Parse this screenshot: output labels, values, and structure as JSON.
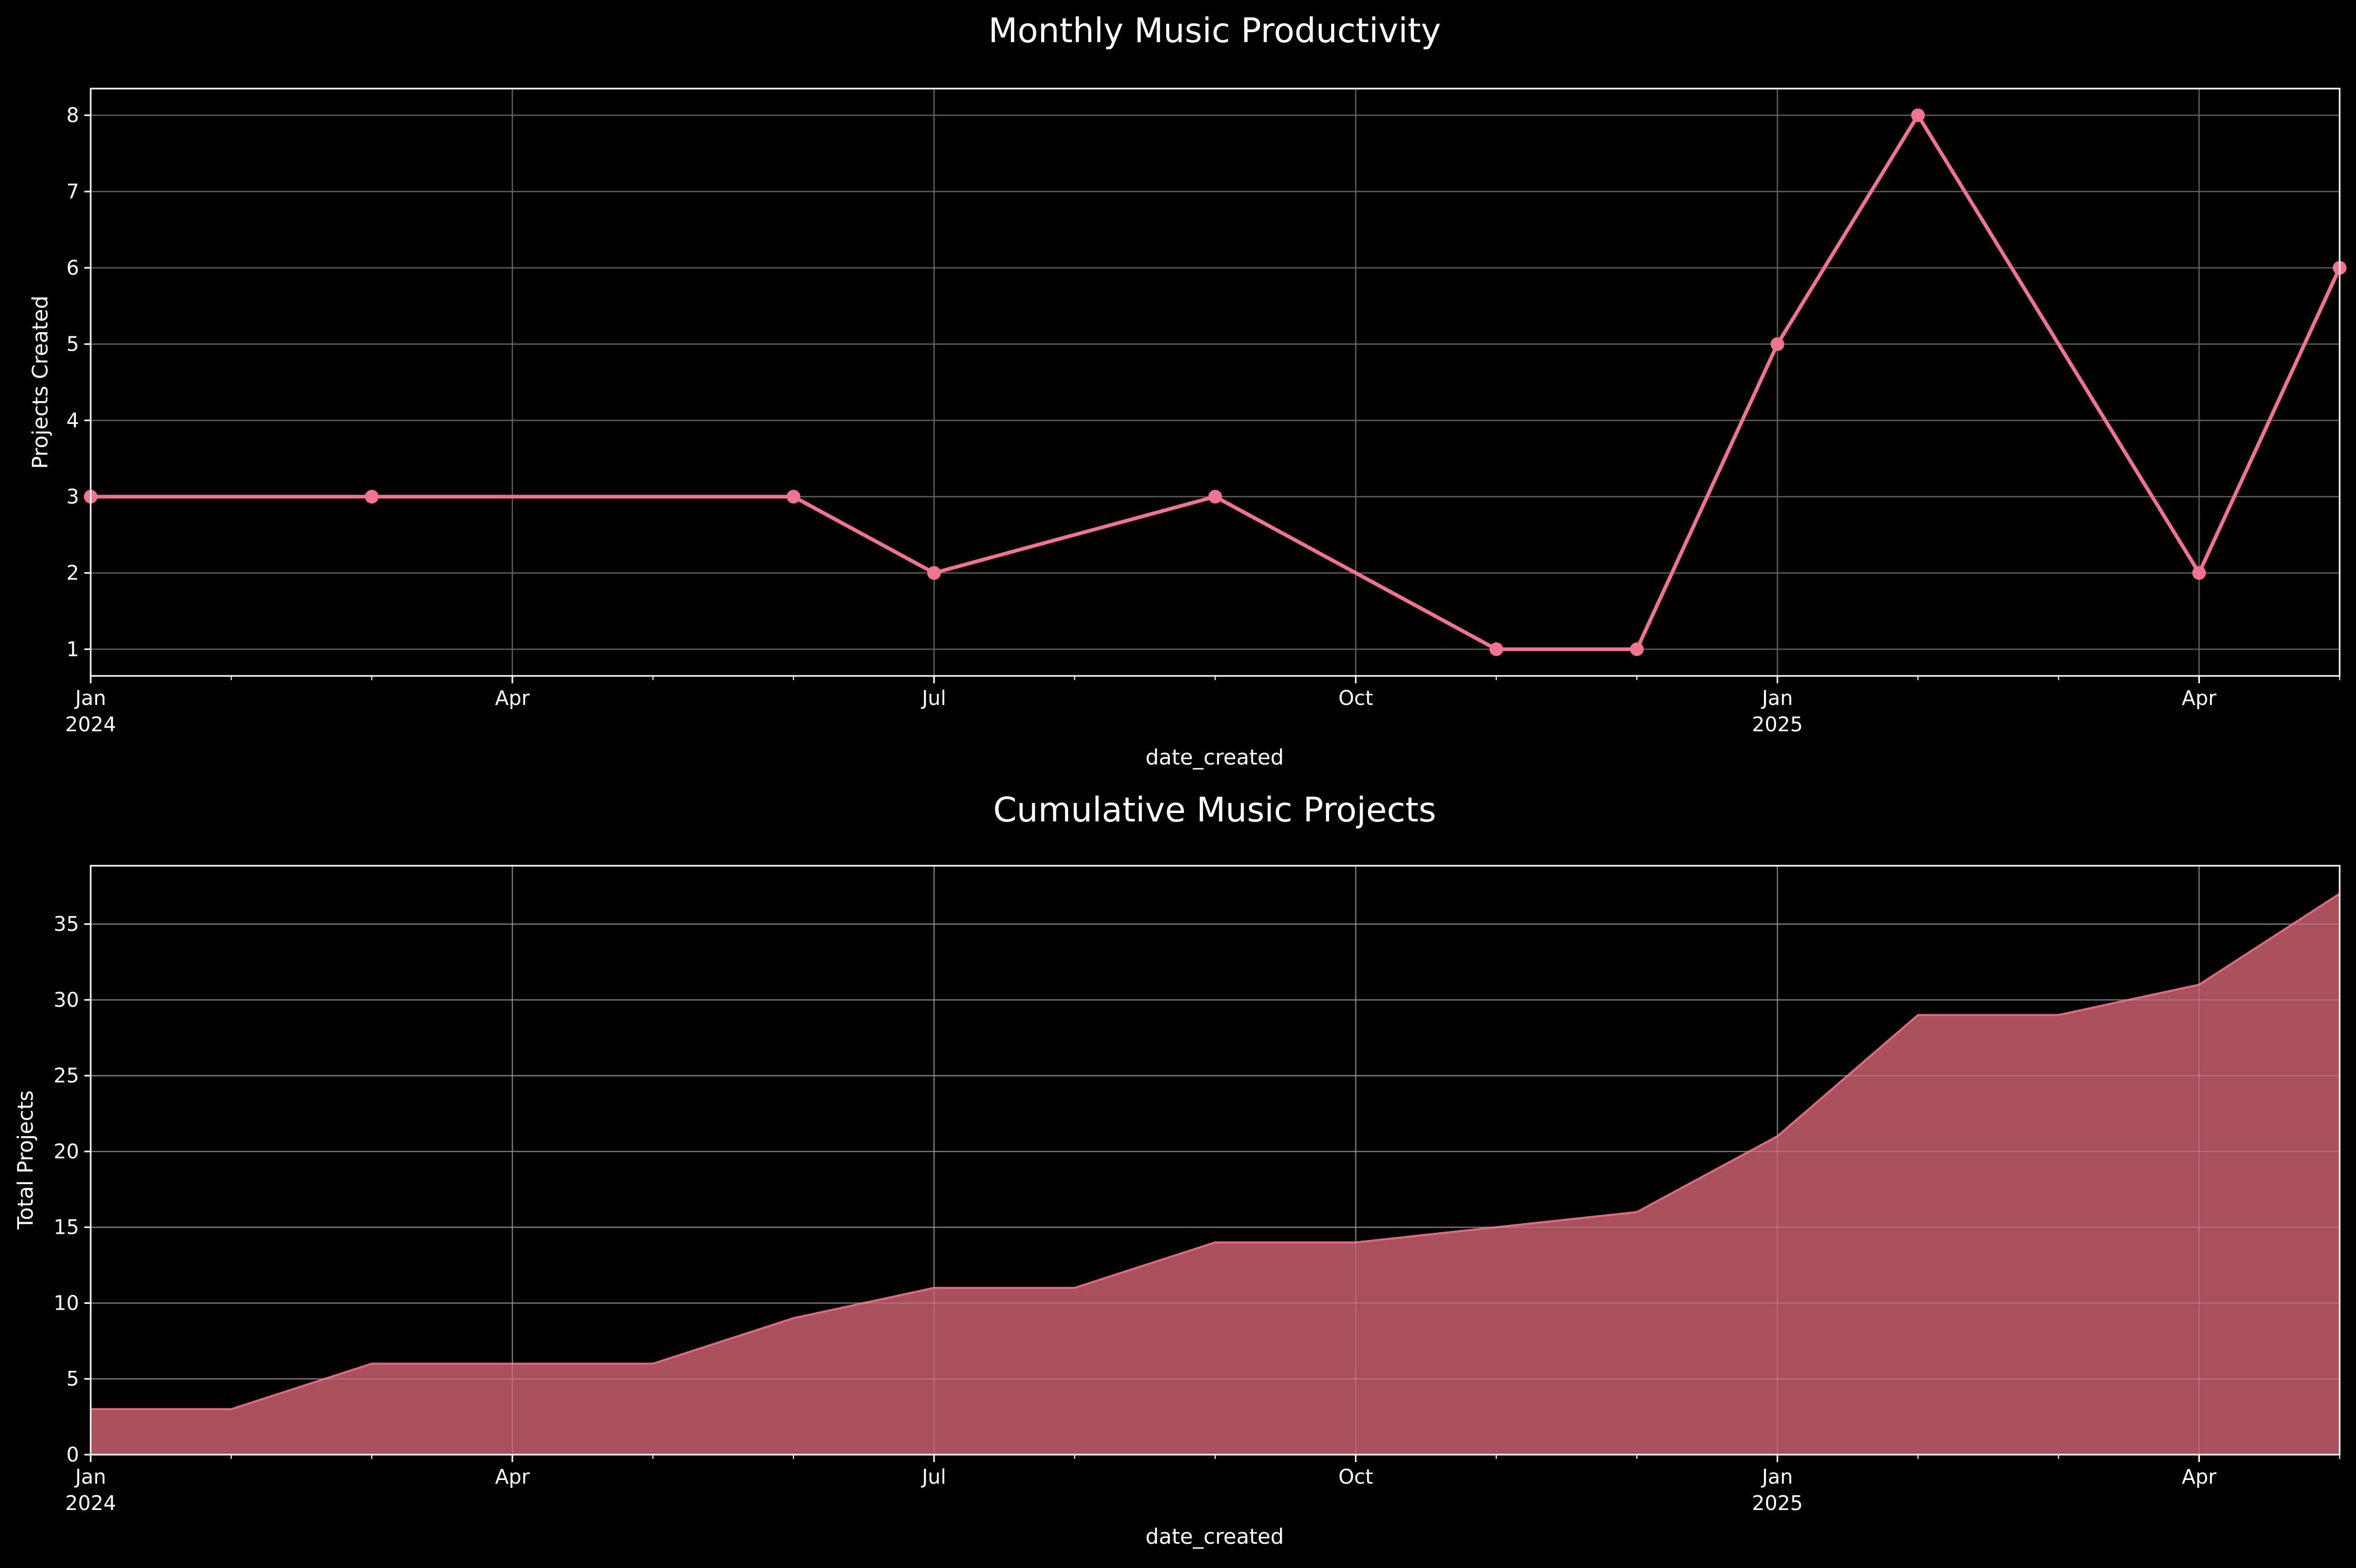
{
  "colors": {
    "background": "#000000",
    "line": "#f07490",
    "area_fill": "#ad5361",
    "area_edge": "#e0687f",
    "axes": "#ffffff",
    "grid": "#666666"
  },
  "x_axis": {
    "range": [
      "2024-01",
      "2025-05"
    ],
    "major_ticks": [
      {
        "month": "2024-01",
        "label": "Jan",
        "year": "2024"
      },
      {
        "month": "2024-04",
        "label": "Apr",
        "year": ""
      },
      {
        "month": "2024-07",
        "label": "Jul",
        "year": ""
      },
      {
        "month": "2024-10",
        "label": "Oct",
        "year": ""
      },
      {
        "month": "2025-01",
        "label": "Jan",
        "year": "2025"
      },
      {
        "month": "2025-04",
        "label": "Apr",
        "year": ""
      }
    ]
  },
  "chart_data": [
    {
      "type": "line",
      "title": "Monthly Music Productivity",
      "xlabel": "date_created",
      "ylabel": "Projects Created",
      "ylim": [
        0.65,
        8.35
      ],
      "yticks": [
        1,
        2,
        3,
        4,
        5,
        6,
        7,
        8
      ],
      "grid": true,
      "markers": true,
      "x": [
        "2024-01",
        "2024-03",
        "2024-06",
        "2024-07",
        "2024-09",
        "2024-11",
        "2024-12",
        "2025-01",
        "2025-02",
        "2025-04",
        "2025-05"
      ],
      "y": [
        3,
        3,
        3,
        2,
        3,
        1,
        1,
        5,
        8,
        2,
        6
      ]
    },
    {
      "type": "area",
      "title": "Cumulative Music Projects",
      "xlabel": "date_created",
      "ylabel": "Total Projects",
      "ylim": [
        0,
        38.85
      ],
      "yticks": [
        0,
        5,
        10,
        15,
        20,
        25,
        30,
        35
      ],
      "grid": true,
      "x": [
        "2024-01",
        "2024-02",
        "2024-03",
        "2024-04",
        "2024-05",
        "2024-06",
        "2024-07",
        "2024-08",
        "2024-09",
        "2024-10",
        "2024-11",
        "2024-12",
        "2025-01",
        "2025-02",
        "2025-03",
        "2025-04",
        "2025-05"
      ],
      "y": [
        3,
        3,
        6,
        6,
        6,
        9,
        11,
        11,
        14,
        14,
        15,
        16,
        21,
        29,
        29,
        31,
        37
      ]
    }
  ]
}
